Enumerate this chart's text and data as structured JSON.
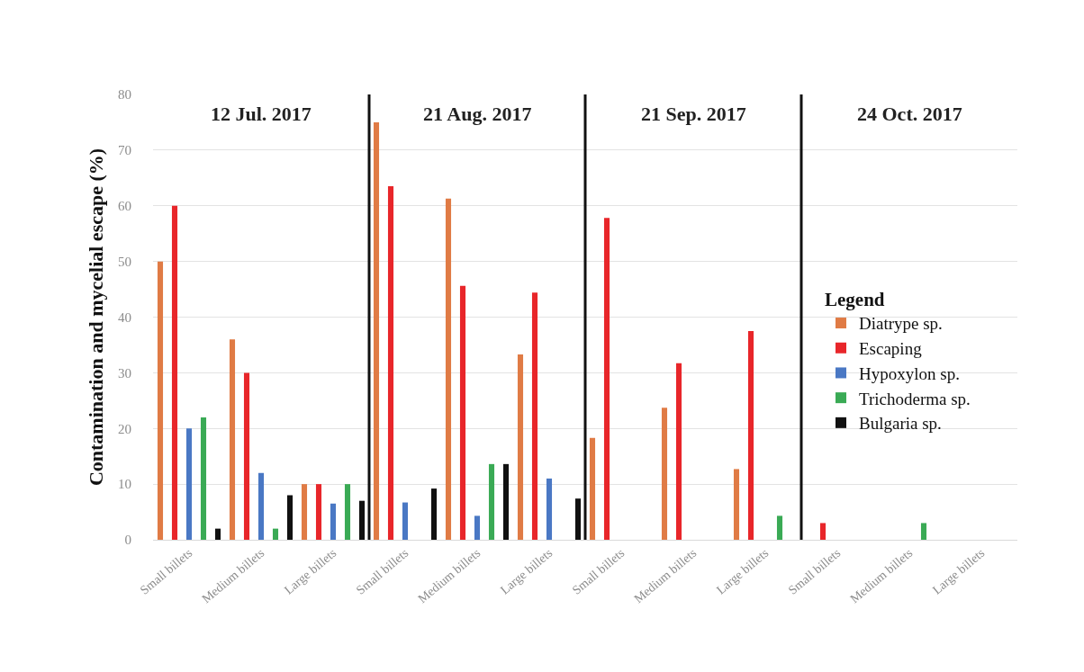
{
  "chart_data": {
    "type": "bar",
    "ylabel": "Contamination and mycelial escape (%)",
    "legend_title": "Legend",
    "categories": [
      "Small billets",
      "Medium billets",
      "Large billets",
      "Small billets",
      "Medium billets",
      "Large billets",
      "Small billets",
      "Medium billets",
      "Large billets",
      "Small billets",
      "Medium billets",
      "Large billets"
    ],
    "series": [
      {
        "name": "Diatrype sp.",
        "color": "#e07b45",
        "values": [
          50,
          36,
          10,
          75,
          61.3,
          33.3,
          18.3,
          23.7,
          12.7,
          null,
          null,
          null
        ]
      },
      {
        "name": "Escaping",
        "color": "#e8262a",
        "values": [
          60,
          30,
          10,
          63.5,
          45.6,
          44.4,
          57.8,
          31.7,
          37.5,
          3,
          null,
          null
        ]
      },
      {
        "name": "Hypoxylon sp.",
        "color": "#4a78c4",
        "values": [
          20,
          12,
          6.5,
          6.7,
          4.3,
          11,
          null,
          null,
          null,
          null,
          null,
          null
        ]
      },
      {
        "name": "Trichoderma sp.",
        "color": "#3aaa55",
        "values": [
          22,
          2,
          10,
          null,
          13.6,
          null,
          null,
          null,
          4.3,
          null,
          3,
          null
        ]
      },
      {
        "name": "Bulgaria sp.",
        "color": "#111111",
        "values": [
          2,
          8,
          7,
          9.2,
          13.6,
          7.4,
          null,
          null,
          null,
          null,
          null,
          null
        ]
      }
    ],
    "ylim": [
      0,
      80
    ],
    "yticks": [
      0,
      10,
      20,
      30,
      40,
      50,
      60,
      70,
      80
    ],
    "grid": "y",
    "legend": "right",
    "annotations": [
      "12 Jul. 2017",
      "21 Aug. 2017",
      "21 Sep. 2017",
      "24 Oct. 2017"
    ]
  }
}
